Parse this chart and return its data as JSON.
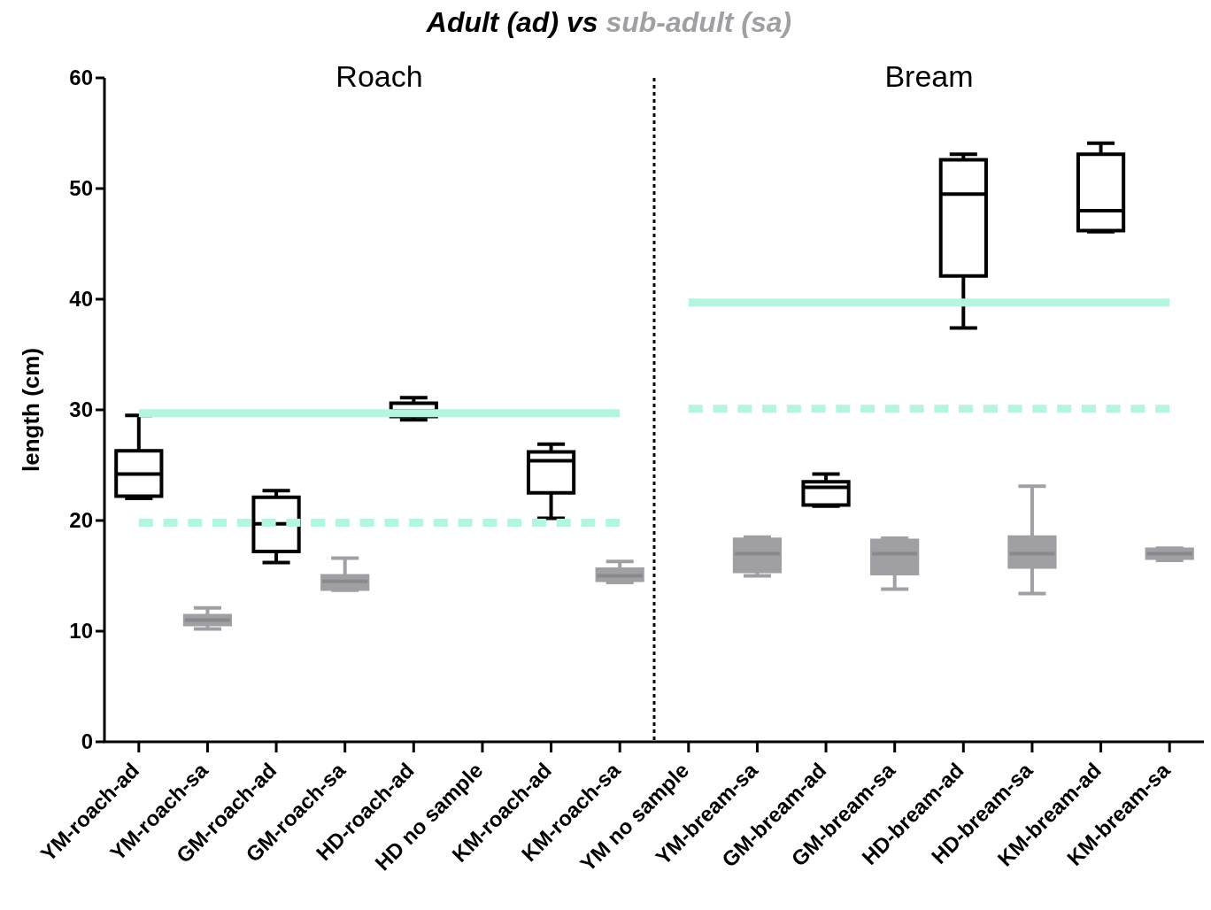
{
  "chart_data": {
    "type": "box",
    "ylabel": "length (cm)",
    "ylim": [
      0,
      60
    ],
    "yticks": [
      0,
      10,
      20,
      30,
      40,
      50,
      60
    ],
    "legend": "top",
    "grid": false,
    "categories": [
      "YM-roach-ad",
      "YM-roach-sa",
      "GM-roach-ad",
      "GM-roach-sa",
      "HD-roach-ad",
      "HD no sample",
      "KM-roach-ad",
      "KM-roach-sa",
      "YM no sample",
      "YM-bream-sa",
      "GM-bream-ad",
      "GM-bream-sa",
      "HD-bream-ad",
      "HD-bream-sa",
      "KM-bream-ad",
      "KM-bream-sa"
    ],
    "annotations": [
      "vs",
      "Roach",
      "Bream"
    ],
    "ref_lines": [
      {
        "axis": "x",
        "value": "YM no sample",
        "color": "#000000",
        "line_style": "dotted"
      }
    ],
    "series": [
      {
        "name": "Adult (ad)",
        "color": "#000000",
        "boxes": [
          {
            "low": 22,
            "q1": 22.2,
            "median": 24.2,
            "q3": 26.3,
            "high": 29.5
          },
          null,
          {
            "low": 16.2,
            "q1": 17.2,
            "median": 19.7,
            "q3": 22.1,
            "high": 22.7
          },
          null,
          {
            "low": 29.1,
            "q1": 29.4,
            "median": 29.9,
            "q3": 30.6,
            "high": 31.1
          },
          null,
          {
            "low": 20.2,
            "q1": 22.5,
            "median": 25.4,
            "q3": 26.2,
            "high": 26.9
          },
          null,
          null,
          null,
          {
            "low": 21.3,
            "q1": 21.4,
            "median": 23,
            "q3": 23.5,
            "high": 24.2
          },
          null,
          {
            "low": 37.4,
            "q1": 42.1,
            "median": 49.5,
            "q3": 52.6,
            "high": 53.1
          },
          null,
          {
            "low": 46.1,
            "q1": 46.2,
            "median": 48,
            "q3": 53.1,
            "high": 54.1
          },
          null
        ]
      },
      {
        "name": "sub-adult (sa)",
        "color": "#a0a0a4",
        "boxes": [
          null,
          {
            "low": 10.2,
            "q1": 10.6,
            "median": 11,
            "q3": 11.4,
            "high": 12.1
          },
          null,
          {
            "low": 13.7,
            "q1": 13.8,
            "median": 14.5,
            "q3": 15,
            "high": 16.6
          },
          null,
          null,
          null,
          {
            "low": 14.4,
            "q1": 14.6,
            "median": 15,
            "q3": 15.6,
            "high": 16.3
          },
          null,
          {
            "low": 15,
            "q1": 15.4,
            "median": 17,
            "q3": 18.3,
            "high": 18.5
          },
          null,
          {
            "low": 13.8,
            "q1": 15.2,
            "median": 17,
            "q3": 18.2,
            "high": 18.4
          },
          null,
          {
            "low": 13.4,
            "q1": 15.8,
            "median": 17,
            "q3": 18.5,
            "high": 23.1
          },
          null,
          {
            "low": 16.4,
            "q1": 16.6,
            "median": 17,
            "q3": 17.4,
            "high": 17.5
          }
        ]
      },
      {
        "type": "line",
        "color": "#b3f5df",
        "line_style": "solid",
        "x": [
          "YM-roach-ad",
          "YM-roach-sa",
          "GM-roach-ad",
          "GM-roach-sa",
          "HD-roach-ad",
          "HD no sample",
          "KM-roach-ad",
          "KM-roach-sa"
        ],
        "values": [
          29.7,
          29.7,
          29.7,
          29.7,
          29.7,
          29.7,
          29.7,
          29.7
        ]
      },
      {
        "type": "line",
        "color": "#b3f5df",
        "line_style": "dashed",
        "x": [
          "YM-roach-ad",
          "YM-roach-sa",
          "GM-roach-ad",
          "GM-roach-sa",
          "HD-roach-ad",
          "HD no sample",
          "KM-roach-ad",
          "KM-roach-sa"
        ],
        "values": [
          19.8,
          19.8,
          19.8,
          19.8,
          19.8,
          19.8,
          19.8,
          19.8
        ]
      },
      {
        "type": "line",
        "color": "#b3f5df",
        "line_style": "solid",
        "x": [
          "YM no sample",
          "YM-bream-sa",
          "GM-bream-ad",
          "GM-bream-sa",
          "HD-bream-ad",
          "HD-bream-sa",
          "KM-bream-ad",
          "KM-bream-sa"
        ],
        "values": [
          39.7,
          39.7,
          39.7,
          39.7,
          39.7,
          39.7,
          39.7,
          39.7
        ]
      },
      {
        "type": "line",
        "color": "#b3f5df",
        "line_style": "dashed",
        "x": [
          "YM no sample",
          "YM-bream-sa",
          "GM-bream-ad",
          "GM-bream-sa",
          "HD-bream-ad",
          "HD-bream-sa",
          "KM-bream-ad",
          "KM-bream-sa"
        ],
        "values": [
          30.1,
          30.1,
          30.1,
          30.1,
          30.1,
          30.1,
          30.1,
          30.1
        ]
      }
    ]
  }
}
